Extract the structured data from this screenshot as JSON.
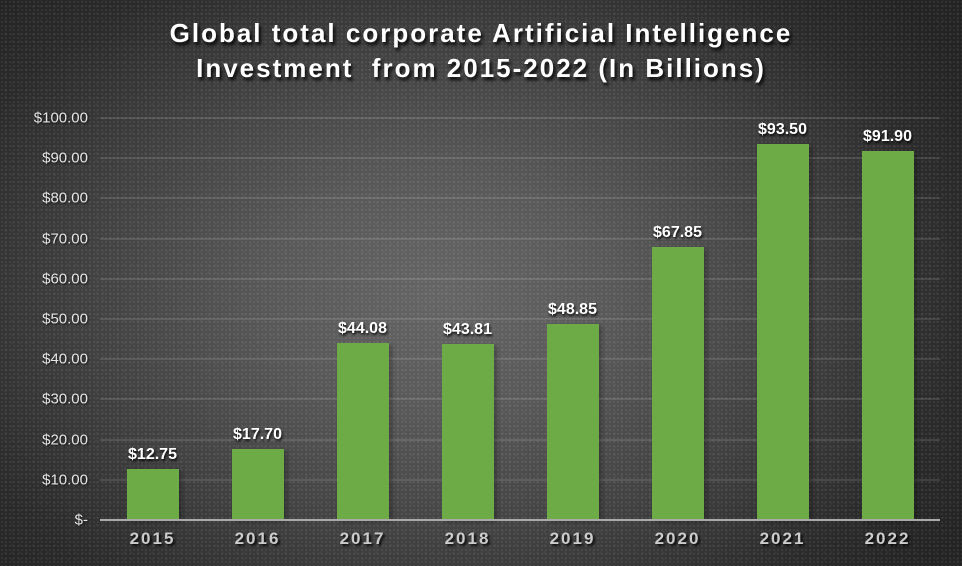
{
  "title": {
    "line1": "Global total corporate Artificial Intelligence",
    "line2": "Investment  from 2015-2022 (In Billions)"
  },
  "chart_data": {
    "type": "bar",
    "title": "Global total corporate Artificial Intelligence Investment from 2015-2022 (In Billions)",
    "xlabel": "",
    "ylabel": "",
    "categories": [
      "2015",
      "2016",
      "2017",
      "2018",
      "2019",
      "2020",
      "2021",
      "2022"
    ],
    "values": [
      12.75,
      17.7,
      44.08,
      43.81,
      48.85,
      67.85,
      93.5,
      91.9
    ],
    "data_labels": [
      "$12.75",
      "$17.70",
      "$44.08",
      "$43.81",
      "$48.85",
      "$67.85",
      "$93.50",
      "$91.90"
    ],
    "ylim": [
      0,
      100
    ],
    "y_ticks": [
      {
        "value": 0,
        "label": "$-"
      },
      {
        "value": 10,
        "label": "$10.00"
      },
      {
        "value": 20,
        "label": "$20.00"
      },
      {
        "value": 30,
        "label": "$30.00"
      },
      {
        "value": 40,
        "label": "$40.00"
      },
      {
        "value": 50,
        "label": "$50.00"
      },
      {
        "value": 60,
        "label": "$60.00"
      },
      {
        "value": 70,
        "label": "$70.00"
      },
      {
        "value": 80,
        "label": "$80.00"
      },
      {
        "value": 90,
        "label": "$90.00"
      },
      {
        "value": 100,
        "label": "$100.00"
      }
    ],
    "grid": true,
    "legend": false,
    "colors": {
      "bar": "#6cab45",
      "background_center": "#656565",
      "background_edge": "#232323",
      "gridline": "rgba(255,255,255,0.22)",
      "axis_line": "#aaaaaa",
      "y_tick_label": "#e6e6e6",
      "x_tick_label": "#cccccc",
      "data_label": "#ffffff",
      "title": "#ffffff"
    }
  }
}
